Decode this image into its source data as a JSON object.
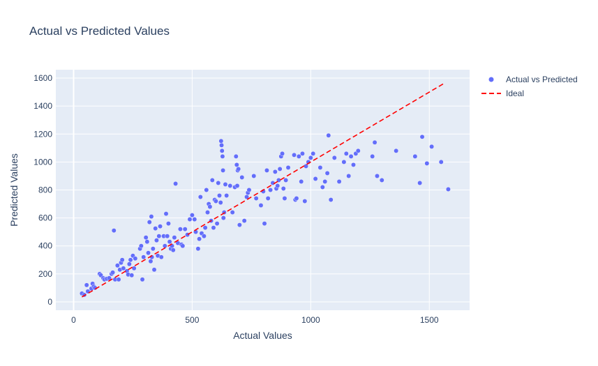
{
  "chart_data": {
    "type": "scatter",
    "title": "Actual vs Predicted Values",
    "xlabel": "Actual Values",
    "ylabel": "Predicted Values",
    "xlim": [
      -75,
      1670
    ],
    "ylim": [
      -60,
      1660
    ],
    "xticks": [
      0,
      500,
      1000,
      1500
    ],
    "yticks": [
      0,
      200,
      400,
      600,
      800,
      1000,
      1200,
      1400,
      1600
    ],
    "grid": true,
    "legend_position": "top-right",
    "series": [
      {
        "name": "Actual vs Predicted",
        "mode": "markers",
        "color": "#636efa",
        "points": [
          [
            35,
            60
          ],
          [
            45,
            50
          ],
          [
            55,
            120
          ],
          [
            60,
            75
          ],
          [
            75,
            95
          ],
          [
            80,
            130
          ],
          [
            85,
            110
          ],
          [
            90,
            100
          ],
          [
            110,
            200
          ],
          [
            115,
            190
          ],
          [
            125,
            170
          ],
          [
            130,
            160
          ],
          [
            140,
            165
          ],
          [
            150,
            170
          ],
          [
            160,
            200
          ],
          [
            165,
            210
          ],
          [
            170,
            510
          ],
          [
            175,
            160
          ],
          [
            185,
            260
          ],
          [
            190,
            160
          ],
          [
            195,
            230
          ],
          [
            200,
            280
          ],
          [
            205,
            300
          ],
          [
            210,
            240
          ],
          [
            225,
            220
          ],
          [
            230,
            195
          ],
          [
            235,
            270
          ],
          [
            240,
            300
          ],
          [
            245,
            190
          ],
          [
            250,
            330
          ],
          [
            255,
            240
          ],
          [
            260,
            310
          ],
          [
            280,
            380
          ],
          [
            285,
            400
          ],
          [
            290,
            160
          ],
          [
            295,
            320
          ],
          [
            305,
            460
          ],
          [
            310,
            430
          ],
          [
            315,
            350
          ],
          [
            320,
            570
          ],
          [
            325,
            290
          ],
          [
            328,
            610
          ],
          [
            330,
            320
          ],
          [
            335,
            380
          ],
          [
            340,
            230
          ],
          [
            345,
            525
          ],
          [
            350,
            440
          ],
          [
            355,
            330
          ],
          [
            360,
            470
          ],
          [
            365,
            540
          ],
          [
            370,
            320
          ],
          [
            380,
            470
          ],
          [
            385,
            400
          ],
          [
            390,
            630
          ],
          [
            395,
            470
          ],
          [
            400,
            560
          ],
          [
            405,
            430
          ],
          [
            410,
            380
          ],
          [
            415,
            400
          ],
          [
            420,
            370
          ],
          [
            425,
            460
          ],
          [
            430,
            845
          ],
          [
            440,
            420
          ],
          [
            450,
            520
          ],
          [
            455,
            410
          ],
          [
            460,
            400
          ],
          [
            470,
            520
          ],
          [
            480,
            480
          ],
          [
            490,
            590
          ],
          [
            500,
            620
          ],
          [
            510,
            590
          ],
          [
            515,
            500
          ],
          [
            525,
            380
          ],
          [
            530,
            450
          ],
          [
            535,
            750
          ],
          [
            540,
            490
          ],
          [
            550,
            470
          ],
          [
            555,
            530
          ],
          [
            560,
            800
          ],
          [
            565,
            640
          ],
          [
            570,
            700
          ],
          [
            575,
            680
          ],
          [
            580,
            580
          ],
          [
            585,
            870
          ],
          [
            590,
            530
          ],
          [
            595,
            730
          ],
          [
            600,
            720
          ],
          [
            605,
            560
          ],
          [
            610,
            850
          ],
          [
            615,
            760
          ],
          [
            620,
            710
          ],
          [
            622,
            1150
          ],
          [
            624,
            1120
          ],
          [
            626,
            1080
          ],
          [
            628,
            1040
          ],
          [
            630,
            940
          ],
          [
            632,
            600
          ],
          [
            635,
            640
          ],
          [
            640,
            840
          ],
          [
            645,
            760
          ],
          [
            660,
            830
          ],
          [
            670,
            640
          ],
          [
            680,
            820
          ],
          [
            685,
            1040
          ],
          [
            688,
            980
          ],
          [
            690,
            830
          ],
          [
            692,
            940
          ],
          [
            695,
            950
          ],
          [
            700,
            550
          ],
          [
            710,
            890
          ],
          [
            720,
            580
          ],
          [
            730,
            750
          ],
          [
            735,
            780
          ],
          [
            740,
            800
          ],
          [
            760,
            900
          ],
          [
            770,
            740
          ],
          [
            790,
            690
          ],
          [
            800,
            790
          ],
          [
            805,
            560
          ],
          [
            815,
            940
          ],
          [
            820,
            740
          ],
          [
            830,
            800
          ],
          [
            840,
            850
          ],
          [
            850,
            930
          ],
          [
            855,
            810
          ],
          [
            860,
            830
          ],
          [
            865,
            870
          ],
          [
            870,
            950
          ],
          [
            875,
            1040
          ],
          [
            880,
            1060
          ],
          [
            885,
            810
          ],
          [
            890,
            740
          ],
          [
            895,
            870
          ],
          [
            905,
            960
          ],
          [
            930,
            1050
          ],
          [
            935,
            730
          ],
          [
            940,
            740
          ],
          [
            950,
            1040
          ],
          [
            960,
            860
          ],
          [
            965,
            1060
          ],
          [
            975,
            720
          ],
          [
            980,
            970
          ],
          [
            990,
            1000
          ],
          [
            1000,
            1030
          ],
          [
            1010,
            1060
          ],
          [
            1020,
            880
          ],
          [
            1040,
            960
          ],
          [
            1050,
            820
          ],
          [
            1060,
            860
          ],
          [
            1070,
            920
          ],
          [
            1075,
            1190
          ],
          [
            1085,
            730
          ],
          [
            1100,
            1030
          ],
          [
            1120,
            860
          ],
          [
            1140,
            1000
          ],
          [
            1150,
            1060
          ],
          [
            1160,
            900
          ],
          [
            1170,
            1040
          ],
          [
            1180,
            980
          ],
          [
            1190,
            1060
          ],
          [
            1200,
            1080
          ],
          [
            1260,
            1040
          ],
          [
            1270,
            1140
          ],
          [
            1280,
            900
          ],
          [
            1300,
            870
          ],
          [
            1360,
            1080
          ],
          [
            1440,
            1040
          ],
          [
            1460,
            850
          ],
          [
            1470,
            1180
          ],
          [
            1490,
            990
          ],
          [
            1510,
            1110
          ],
          [
            1550,
            1000
          ],
          [
            1580,
            805
          ]
        ]
      },
      {
        "name": "Ideal",
        "mode": "lines",
        "dash": "dash",
        "color": "#ff0000",
        "x": [
          35,
          1560
        ],
        "y": [
          35,
          1560
        ]
      }
    ]
  }
}
